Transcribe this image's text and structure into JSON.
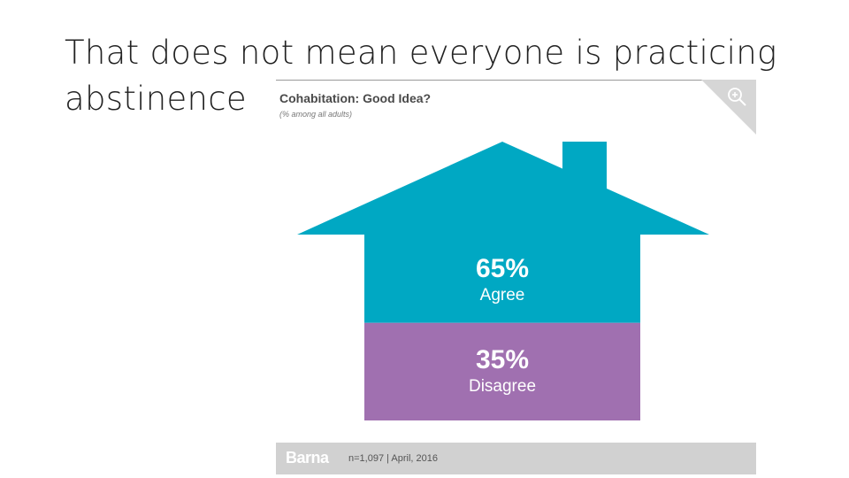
{
  "slide": {
    "title": "That does not mean everyone is practicing abstinence"
  },
  "chart_data": {
    "type": "pie",
    "title": "Cohabitation: Good Idea?",
    "subtitle": "(% among all adults)",
    "categories": [
      "Agree",
      "Disagree"
    ],
    "values": [
      65,
      35
    ],
    "value_labels": [
      "65%",
      "35%"
    ],
    "colors": [
      "#00a8c3",
      "#a070b0"
    ]
  },
  "footer": {
    "brand": "Barna",
    "note": "n=1,097  |  April, 2016"
  },
  "icons": {
    "zoom": "zoom-in-icon"
  }
}
